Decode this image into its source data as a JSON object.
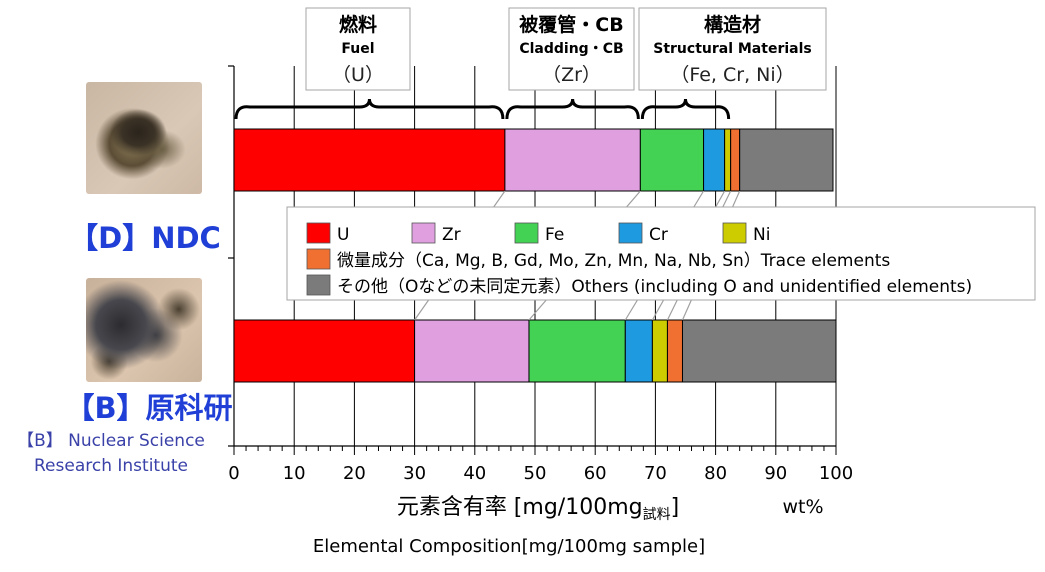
{
  "chart_data": {
    "type": "bar",
    "orientation": "horizontal-stacked",
    "x_unit": "wt%",
    "xlim": [
      0,
      100
    ],
    "x_ticks": [
      0,
      10,
      20,
      30,
      40,
      50,
      60,
      70,
      80,
      90,
      100
    ],
    "xlabel_jp": "元素含有率 [mg/100mg",
    "xlabel_sub": "試料",
    "xlabel_close": "]",
    "xlabel_en": "Elemental Composition[mg/100mg sample]",
    "grid": true,
    "samples": [
      {
        "label": "【D】NDC",
        "sublabel": "",
        "color": "#1f3fd6",
        "values": {
          "U": 45,
          "Zr": 22.5,
          "Fe": 10.5,
          "Cr": 3.5,
          "Ni": 1,
          "Trace": 1.5,
          "Others": 15.5
        }
      },
      {
        "label": "【B】原科研",
        "sublabel": "【B】 Nuclear Science\nResearch Institute",
        "color": "#1f3fd6",
        "values": {
          "U": 30,
          "Zr": 19,
          "Fe": 16,
          "Cr": 4.5,
          "Ni": 2.5,
          "Trace": 2.5,
          "Others": 25.5
        }
      }
    ],
    "series": [
      {
        "key": "U",
        "name": "U",
        "color": "#ff0000"
      },
      {
        "key": "Zr",
        "name": "Zr",
        "color": "#e0a0e0"
      },
      {
        "key": "Fe",
        "name": "Fe",
        "color": "#44d254"
      },
      {
        "key": "Cr",
        "name": "Cr",
        "color": "#1e9ae0"
      },
      {
        "key": "Ni",
        "name": "Ni",
        "color": "#cccc00"
      },
      {
        "key": "Trace",
        "name": "微量成分（Ca, Mg, B, Gd, Mo, Zn, Mn, Na, Nb, Sn）Trace elements",
        "color": "#ef7030"
      },
      {
        "key": "Others",
        "name": "その他（Oなどの未同定元素）Others (including O and unidentified elements)",
        "color": "#7b7b7b"
      }
    ],
    "legend_placement": "center (between bars)",
    "groups": [
      {
        "jp": "燃料",
        "en": "Fuel",
        "elements": "（U）",
        "x_from": 0,
        "x_to": 45
      },
      {
        "jp": "被覆管・CB",
        "en": "Cladding・CB",
        "elements": "（Zr）",
        "x_from": 45,
        "x_to": 67.5
      },
      {
        "jp": "構造材",
        "en": "Structural Materials",
        "elements": "（Fe, Cr, Ni）",
        "x_from": 67.5,
        "x_to": 82.5
      }
    ]
  }
}
